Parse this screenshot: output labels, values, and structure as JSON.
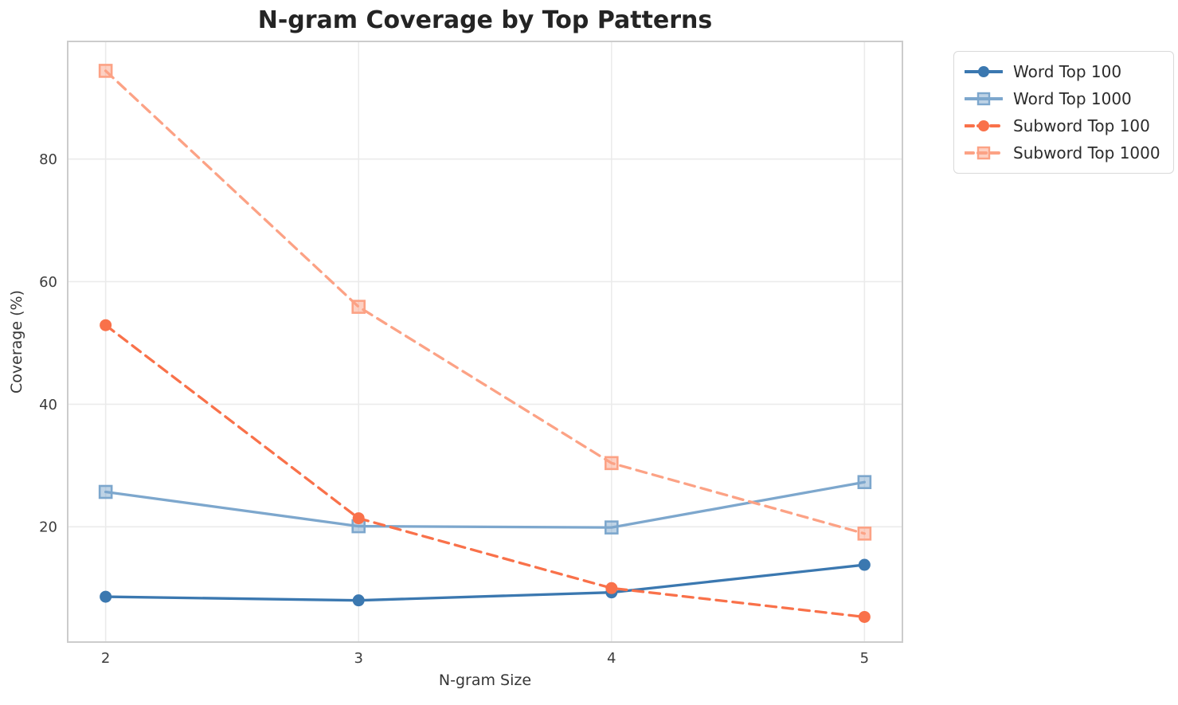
{
  "chart_data": {
    "type": "line",
    "title": "N-gram Coverage by Top Patterns",
    "xlabel": "N-gram Size",
    "ylabel": "Coverage (%)",
    "x": [
      2,
      3,
      4,
      5
    ],
    "x_tick_labels": [
      "2",
      "3",
      "4",
      "5"
    ],
    "y_ticks": [
      20,
      40,
      60,
      80
    ],
    "xlim": [
      1.85,
      5.15
    ],
    "ylim": [
      1.2,
      99.2
    ],
    "grid": true,
    "legend_position": "outside-upper-right",
    "series": [
      {
        "name": "Word Top 100",
        "values": [
          8.6,
          8.0,
          9.3,
          13.8
        ],
        "color": "#3b78b0",
        "line_style": "solid",
        "marker": "circle"
      },
      {
        "name": "Word Top 1000",
        "values": [
          25.7,
          20.1,
          19.9,
          27.3
        ],
        "color": "#7da7cd",
        "line_style": "solid",
        "marker": "square"
      },
      {
        "name": "Subword Top 100",
        "values": [
          52.9,
          21.4,
          10.0,
          5.3
        ],
        "color": "#f9714a",
        "line_style": "dashed",
        "marker": "circle"
      },
      {
        "name": "Subword Top 1000",
        "values": [
          94.4,
          55.9,
          30.4,
          18.9
        ],
        "color": "#fca285",
        "line_style": "dashed",
        "marker": "square"
      }
    ],
    "axis_colors": {
      "spine": "#cccccc",
      "grid": "#ebebeb",
      "tick_label": "#3c3c3c"
    }
  }
}
